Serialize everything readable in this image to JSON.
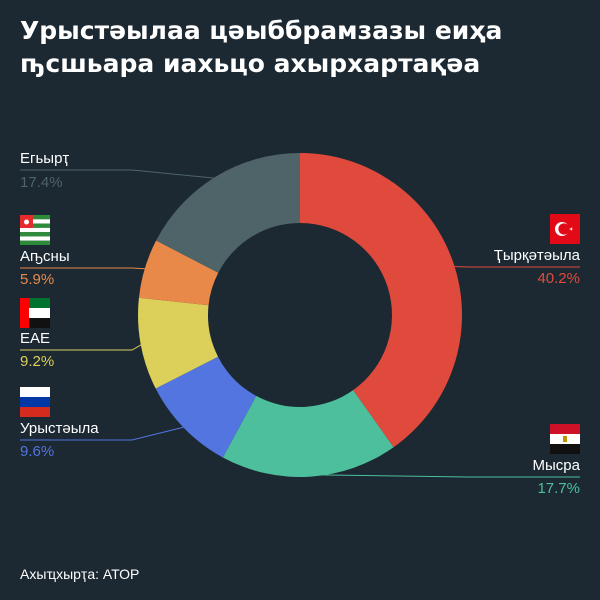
{
  "title": "Урыстәылаа цәыббрамзазы еиҳа ҧсшьара иахьцо ахырхартақәа",
  "source": "Ахыҵхырҭа: АТОР",
  "chart_data": {
    "type": "pie",
    "donut": true,
    "unit": "%",
    "slices": [
      {
        "name": "Ҭырқәтәыла",
        "value": 40.2,
        "label": "40.2%",
        "color": "#e04a3c",
        "flag": "turkey"
      },
      {
        "name": "Мысра",
        "value": 17.7,
        "label": "17.7%",
        "color": "#4dbf9c",
        "flag": "egypt"
      },
      {
        "name": "Урыстәыла",
        "value": 9.6,
        "label": "9.6%",
        "color": "#5275e0",
        "flag": "russia"
      },
      {
        "name": "ЕАЕ",
        "value": 9.2,
        "label": "9.2%",
        "color": "#ddd05a",
        "flag": "uae"
      },
      {
        "name": "Аҧсны",
        "value": 5.9,
        "label": "5.9%",
        "color": "#e8894a",
        "flag": "abkhazia"
      },
      {
        "name": "Егьырҭ",
        "value": 17.4,
        "label": "17.4%",
        "color": "#4f6468",
        "flag": ""
      }
    ]
  }
}
